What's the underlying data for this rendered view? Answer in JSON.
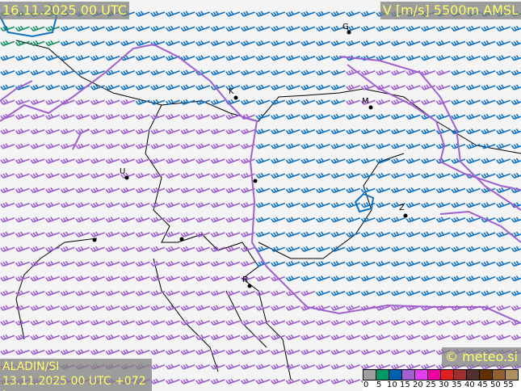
{
  "header": {
    "valid_time": "16.11.2025 00 UTC",
    "parameter": "V [m/s] 5500m AMSL"
  },
  "footer": {
    "model": "ALADIN/SI",
    "run": "13.11.2025 00 UTC +072 h",
    "copyright": "© meteo.si"
  },
  "legend": {
    "ticks": [
      "0",
      "5",
      "10",
      "15",
      "20",
      "25",
      "30",
      "35",
      "40",
      "45",
      "50",
      "55"
    ],
    "colors": [
      "#a0a0a0",
      "#009966",
      "#0060b0",
      "#a060d0",
      "#e040f0",
      "#f000a0",
      "#e02020",
      "#a03030",
      "#503030",
      "#603000",
      "#906030",
      "#b09060"
    ]
  },
  "cities": [
    {
      "label": "G"
    },
    {
      "label": "K"
    },
    {
      "label": "M"
    },
    {
      "label": "U"
    },
    {
      "label": "Z"
    },
    {
      "label": "R"
    }
  ],
  "barb_colors": {
    "blue": "#1070c0",
    "purple": "#9a5ccc",
    "green": "#109060"
  },
  "contour_color": "#a060d0"
}
